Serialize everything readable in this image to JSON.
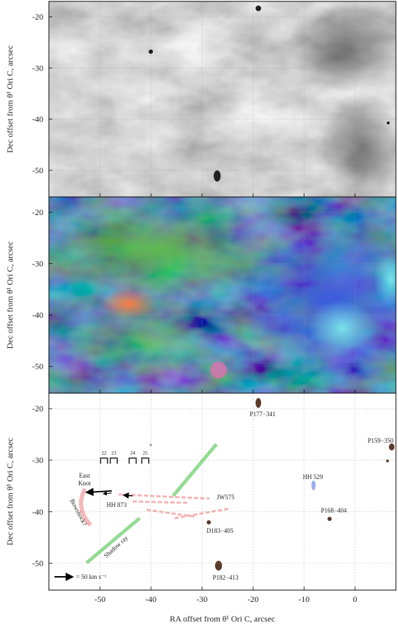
{
  "chart_data": [
    {
      "type": "image",
      "ylabel": "Dec offset from θ¹ Ori C, arcsec",
      "xlim": [
        -60,
        8
      ],
      "ylim": [
        -55.2,
        -17
      ],
      "xticks": [
        -50,
        -40,
        -30,
        -20,
        -10,
        0
      ],
      "yticks": [
        -20,
        -30,
        -40,
        -50
      ],
      "grid": true
    },
    {
      "type": "image",
      "ylabel": "Dec offset from θ¹ Ori C, arcsec",
      "xlim": [
        -60,
        8
      ],
      "ylim": [
        -55.2,
        -17
      ],
      "xticks": [
        -50,
        -40,
        -30,
        -20,
        -10,
        0
      ],
      "yticks": [
        -20,
        -30,
        -40,
        -50
      ],
      "grid": true
    },
    {
      "type": "image",
      "ylabel": "Dec offset from θ¹ Ori C, arcsec",
      "xlabel": "RA offset from θ¹ Ori C, arcsec",
      "xlim": [
        -60,
        8
      ],
      "ylim": [
        -55.2,
        -17
      ],
      "xticks": [
        -50,
        -40,
        -30,
        -20,
        -10,
        0
      ],
      "yticks": [
        -20,
        -30,
        -40,
        -50
      ],
      "grid": true,
      "annotations": [
        "P177−341",
        "P159−350",
        "HH 529",
        "JW575",
        "P168−404",
        "HH 873",
        "D183−405",
        "P182−413",
        "East",
        "Knot",
        "Bowshock?",
        "Shadow ray",
        "22",
        "23",
        "24",
        "25",
        "= 50 km s⁻¹"
      ]
    }
  ]
}
